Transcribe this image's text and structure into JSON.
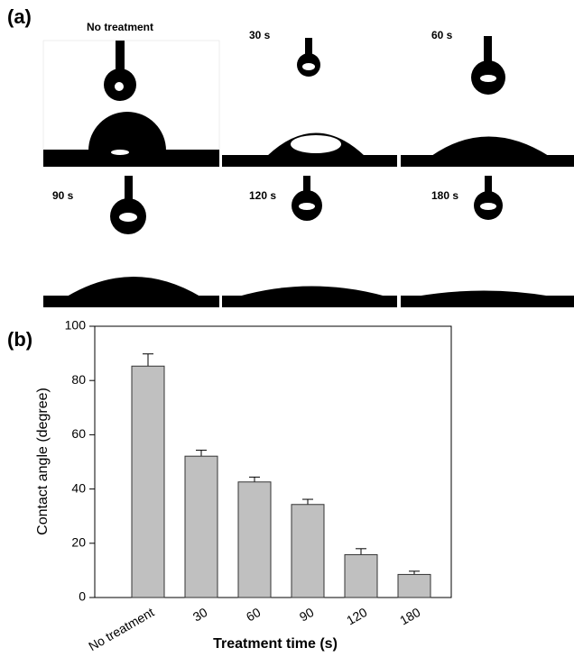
{
  "panel_labels": [
    "(a)",
    "(b)"
  ],
  "images": [
    {
      "label": "No treatment"
    },
    {
      "label": "30 s"
    },
    {
      "label": "60 s"
    },
    {
      "label": "90 s"
    },
    {
      "label": "120 s"
    },
    {
      "label": "180 s"
    }
  ],
  "chart_data": {
    "type": "bar",
    "x_label": "Treatment time (s)",
    "y_label": "Contact angle (degree)",
    "categories": [
      "No treatment",
      "30",
      "60",
      "90",
      "120",
      "180"
    ],
    "values": [
      85.3,
      52.1,
      42.6,
      34.3,
      15.8,
      8.5
    ],
    "errors": [
      4.5,
      2.2,
      1.8,
      1.9,
      2.2,
      1.2
    ],
    "color": "#c0c0c0",
    "ylim": [
      0,
      100
    ],
    "yticks": [
      0,
      20,
      40,
      60,
      80,
      100
    ]
  }
}
